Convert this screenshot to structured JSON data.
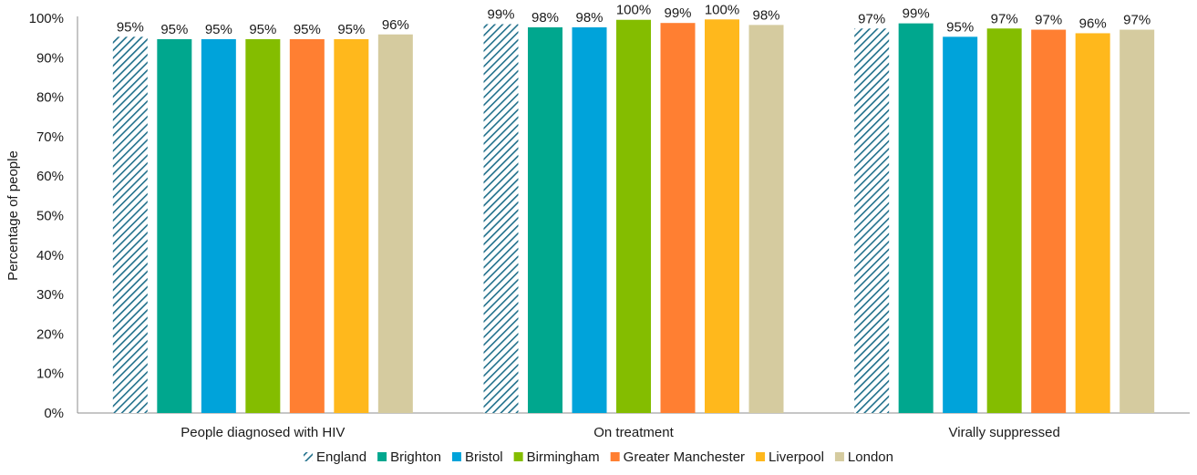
{
  "chart_data": {
    "type": "bar",
    "title": "",
    "xlabel": "",
    "ylabel": "Percentage of people",
    "ylim": [
      0,
      100
    ],
    "y_ticks": [
      "0%",
      "10%",
      "20%",
      "30%",
      "40%",
      "50%",
      "60%",
      "70%",
      "80%",
      "90%",
      "100%"
    ],
    "grid": false,
    "legend_position": "bottom",
    "categories": [
      "People diagnosed with HIV",
      "On treatment",
      "Virally suppressed"
    ],
    "series": [
      {
        "name": "England",
        "color": "#1F6F8B",
        "pattern": "hatched",
        "values": [
          95.3,
          98.5,
          97.4
        ],
        "labels": [
          "95%",
          "99%",
          "97%"
        ]
      },
      {
        "name": "Brighton",
        "color": "#00A78E",
        "values": [
          94.7,
          97.7,
          98.7
        ],
        "labels": [
          "95%",
          "98%",
          "99%"
        ]
      },
      {
        "name": "Bristol",
        "color": "#00A3DA",
        "values": [
          94.7,
          97.7,
          95.3
        ],
        "labels": [
          "95%",
          "98%",
          "95%"
        ]
      },
      {
        "name": "Birmingham",
        "color": "#84BD00",
        "values": [
          94.7,
          99.6,
          97.4
        ],
        "labels": [
          "95%",
          "100%",
          "97%"
        ]
      },
      {
        "name": "Greater Manchester",
        "color": "#FF7F32",
        "values": [
          94.7,
          98.8,
          97.1
        ],
        "labels": [
          "95%",
          "99%",
          "97%"
        ]
      },
      {
        "name": "Liverpool",
        "color": "#FFB81C",
        "values": [
          94.7,
          99.7,
          96.2
        ],
        "labels": [
          "95%",
          "100%",
          "96%"
        ]
      },
      {
        "name": "London",
        "color": "#D5CB9F",
        "values": [
          95.9,
          98.3,
          97.1
        ],
        "labels": [
          "96%",
          "98%",
          "97%"
        ]
      }
    ]
  }
}
